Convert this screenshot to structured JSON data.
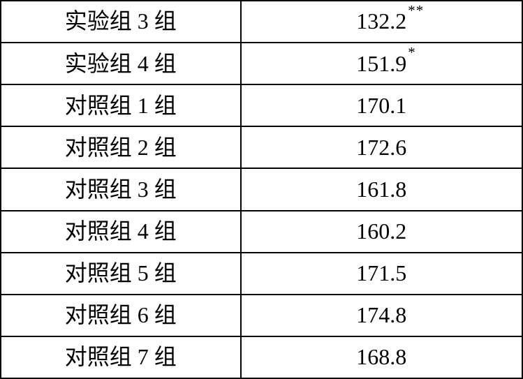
{
  "table": {
    "type": "table",
    "columns": [
      "group",
      "value"
    ],
    "column_align": [
      "center",
      "center"
    ],
    "border_color": "#000000",
    "background_color": "#ffffff",
    "text_color": "#000000",
    "font_family": "SimSun",
    "font_size_pt": 24,
    "rows": [
      {
        "group": "实验组 3 组",
        "value": "132.2",
        "stars": "**"
      },
      {
        "group": "实验组 4 组",
        "value": "151.9",
        "stars": "*"
      },
      {
        "group": "对照组 1 组",
        "value": "170.1",
        "stars": ""
      },
      {
        "group": "对照组 2 组",
        "value": "172.6",
        "stars": ""
      },
      {
        "group": "对照组 3 组",
        "value": "161.8",
        "stars": ""
      },
      {
        "group": "对照组 4 组",
        "value": "160.2",
        "stars": ""
      },
      {
        "group": "对照组 5 组",
        "value": "171.5",
        "stars": ""
      },
      {
        "group": "对照组 6 组",
        "value": "174.8",
        "stars": ""
      },
      {
        "group": "对照组 7 组",
        "value": "168.8",
        "stars": ""
      }
    ]
  }
}
